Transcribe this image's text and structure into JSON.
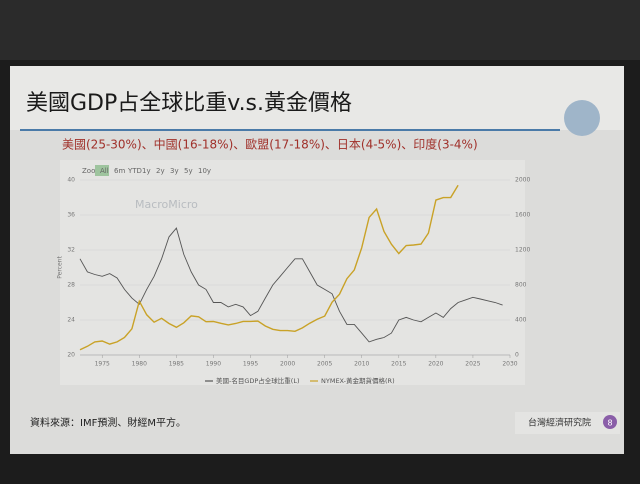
{
  "header": {
    "title": "美國GDP占全球比重v.s.黃金價格",
    "subtitle": "美國(25-30%)、中國(16-18%)、歐盟(17-18%)、日本(4-5%)、印度(3-4%)"
  },
  "zoom": {
    "label": "Zoom",
    "buttons": [
      "All",
      "6m",
      "YTD",
      "1y",
      "2y",
      "3y",
      "5y",
      "10y"
    ]
  },
  "watermark": "MacroMicro",
  "chart_data": {
    "type": "line",
    "y_label": "Percent",
    "x": [
      1972,
      1973,
      1974,
      1975,
      1976,
      1977,
      1978,
      1979,
      1980,
      1981,
      1982,
      1983,
      1984,
      1985,
      1986,
      1987,
      1988,
      1989,
      1990,
      1991,
      1992,
      1993,
      1994,
      1995,
      1996,
      1997,
      1998,
      1999,
      2000,
      2001,
      2002,
      2003,
      2004,
      2005,
      2006,
      2007,
      2008,
      2009,
      2010,
      2011,
      2012,
      2013,
      2014,
      2015,
      2016,
      2017,
      2018,
      2019,
      2020,
      2021,
      2022,
      2023,
      2024,
      2025,
      2026,
      2027,
      2028,
      2029
    ],
    "xlim": [
      1972,
      2030
    ],
    "xticks": [
      1975,
      1980,
      1985,
      1990,
      1995,
      2000,
      2005,
      2010,
      2015,
      2020,
      2025,
      2030
    ],
    "ylim": [
      20,
      40
    ],
    "yticks": [
      20,
      24,
      28,
      32,
      36,
      40
    ],
    "y2lim": [
      0,
      2000
    ],
    "y2ticks": [
      0,
      400,
      800,
      1200,
      1600,
      2000
    ],
    "series": [
      {
        "name": "美國-名目GDP占全球比重(L)",
        "color": "#555555",
        "values": [
          31,
          29.5,
          29.2,
          29,
          29.3,
          28.8,
          27.5,
          26.5,
          25.8,
          27.5,
          29,
          31,
          33.5,
          34.5,
          31.5,
          29.5,
          28,
          27.5,
          26,
          26,
          25.5,
          25.8,
          25.5,
          24.5,
          25,
          26.5,
          28,
          29,
          30,
          31,
          31,
          29.5,
          28,
          27.5,
          27,
          25,
          23.5,
          23.5,
          22.5,
          21.5,
          21.8,
          22,
          22.5,
          24,
          24.3,
          24,
          23.8,
          24.3,
          24.8,
          24.3,
          25.3,
          26,
          26.3,
          26.6,
          26.4,
          26.2,
          26,
          25.7
        ]
      },
      {
        "name": "NYMEX-黃金期貨價格(R)",
        "color": "#c9a227",
        "axis": "y2",
        "values": [
          60,
          100,
          150,
          160,
          125,
          150,
          200,
          300,
          615,
          460,
          375,
          420,
          360,
          317,
          368,
          447,
          437,
          381,
          383,
          362,
          344,
          360,
          384,
          384,
          388,
          331,
          294,
          279,
          279,
          271,
          310,
          363,
          409,
          444,
          603,
          695,
          872,
          972,
          1225,
          1572,
          1669,
          1411,
          1266,
          1160,
          1251,
          1257,
          1268,
          1393,
          1770,
          1799,
          1800,
          1940,
          null,
          null,
          null,
          null,
          null,
          null
        ]
      }
    ]
  },
  "footer": {
    "source": "資料來源：IMF預測、財經M平方。",
    "logo": "台灣經濟研究院",
    "page": "8"
  }
}
